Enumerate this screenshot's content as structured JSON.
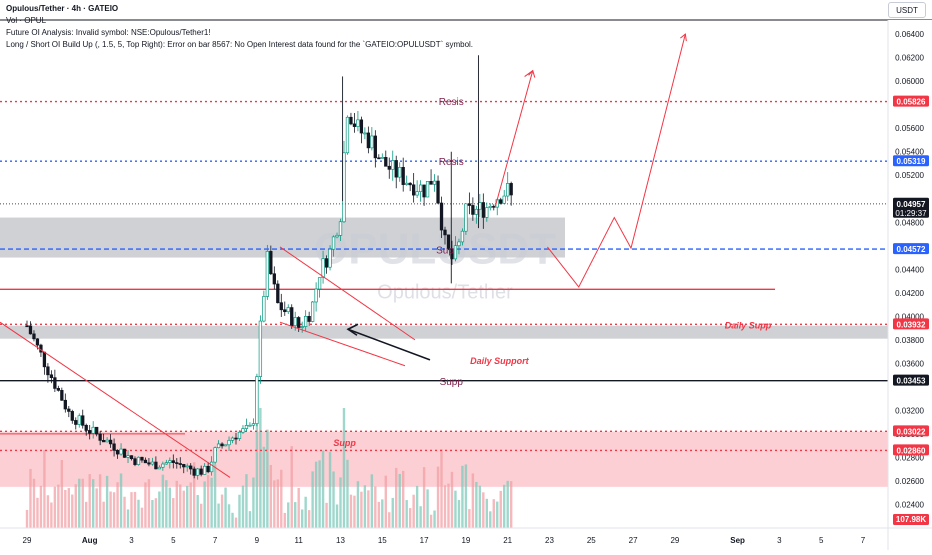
{
  "header": {
    "title": "Opulous/Tether · 4h · GATEIO",
    "line1": "Vol · OPUL",
    "line2": "Future OI Analysis: Invalid symbol: NSE:Opulous/Tether1!",
    "line3": "Long / Short OI Build Up  (, 1.5, 5, Top Right): Error on bar 8567: No Open Interest data found for the `GATEIO:OPULUSDT` symbol."
  },
  "currency_button": "USDT",
  "watermark": {
    "symbol": "OPULUSDT",
    "name": "Opulous/Tether"
  },
  "colors": {
    "up": "#089981",
    "down": "#131722",
    "resistance": "#f23645",
    "support_blue": "#2962ff",
    "zone_grey": "#9598a1",
    "zone_red": "#f7a8ae"
  },
  "chart_data": {
    "type": "candlestick",
    "y_range": [
      0.022,
      0.0652
    ],
    "y_ticks": [
      "0.06400",
      "0.06200",
      "0.06000",
      "0.05600",
      "0.05400",
      "0.05200",
      "0.04800",
      "0.04400",
      "0.04200",
      "0.04000",
      "0.03800",
      "0.03600",
      "0.03200",
      "0.03000",
      "0.02800",
      "0.02600",
      "0.02400"
    ],
    "x_ticks": [
      {
        "label": "29",
        "day": 0
      },
      {
        "label": "Aug",
        "day": 3
      },
      {
        "label": "3",
        "day": 5
      },
      {
        "label": "5",
        "day": 7
      },
      {
        "label": "7",
        "day": 9
      },
      {
        "label": "9",
        "day": 11
      },
      {
        "label": "11",
        "day": 13
      },
      {
        "label": "13",
        "day": 15
      },
      {
        "label": "15",
        "day": 17
      },
      {
        "label": "17",
        "day": 19
      },
      {
        "label": "19",
        "day": 21
      },
      {
        "label": "21",
        "day": 23
      },
      {
        "label": "23",
        "day": 25
      },
      {
        "label": "25",
        "day": 27
      },
      {
        "label": "27",
        "day": 29
      },
      {
        "label": "29",
        "day": 31
      },
      {
        "label": "Sep",
        "day": 34
      },
      {
        "label": "3",
        "day": 36
      },
      {
        "label": "5",
        "day": 38
      },
      {
        "label": "7",
        "day": 40
      }
    ],
    "key_closes": [
      {
        "day": 0.0,
        "close": 0.0392
      },
      {
        "day": 1.0,
        "close": 0.0355
      },
      {
        "day": 2.0,
        "close": 0.0318
      },
      {
        "day": 3.0,
        "close": 0.0303
      },
      {
        "day": 4.0,
        "close": 0.0292
      },
      {
        "day": 5.0,
        "close": 0.0279
      },
      {
        "day": 6.0,
        "close": 0.0274
      },
      {
        "day": 7.0,
        "close": 0.0276
      },
      {
        "day": 8.0,
        "close": 0.0269
      },
      {
        "day": 8.6,
        "close": 0.0268
      },
      {
        "day": 9.0,
        "close": 0.0285
      },
      {
        "day": 10.0,
        "close": 0.03
      },
      {
        "day": 10.8,
        "close": 0.0305
      },
      {
        "day": 11.2,
        "close": 0.0398
      },
      {
        "day": 11.5,
        "close": 0.0448
      },
      {
        "day": 12.0,
        "close": 0.041
      },
      {
        "day": 12.5,
        "close": 0.0402
      },
      {
        "day": 13.0,
        "close": 0.0391
      },
      {
        "day": 13.6,
        "close": 0.0405
      },
      {
        "day": 14.0,
        "close": 0.0438
      },
      {
        "day": 14.5,
        "close": 0.0455
      },
      {
        "day": 15.0,
        "close": 0.0488
      },
      {
        "day": 15.3,
        "close": 0.0579
      },
      {
        "day": 15.8,
        "close": 0.056
      },
      {
        "day": 16.5,
        "close": 0.0548
      },
      {
        "day": 17.0,
        "close": 0.0531
      },
      {
        "day": 17.5,
        "close": 0.0524
      },
      {
        "day": 18.0,
        "close": 0.0518
      },
      {
        "day": 18.5,
        "close": 0.0512
      },
      {
        "day": 19.0,
        "close": 0.0508
      },
      {
        "day": 19.5,
        "close": 0.052
      },
      {
        "day": 20.0,
        "close": 0.0462
      },
      {
        "day": 20.3,
        "close": 0.0448
      },
      {
        "day": 20.6,
        "close": 0.0455
      },
      {
        "day": 21.0,
        "close": 0.0488
      },
      {
        "day": 21.5,
        "close": 0.049
      },
      {
        "day": 22.0,
        "close": 0.0493
      },
      {
        "day": 22.5,
        "close": 0.0502
      },
      {
        "day": 23.0,
        "close": 0.0507
      },
      {
        "day": 23.3,
        "close": 0.0496
      }
    ],
    "price_labels": [
      {
        "value": 0.05826,
        "label": "0.05826",
        "style": "red"
      },
      {
        "value": 0.05319,
        "label": "0.05319",
        "style": "blue"
      },
      {
        "value": 0.04957,
        "label": "0.04957",
        "style": "black",
        "sub": "01:29:37"
      },
      {
        "value": 0.04572,
        "label": "0.04572",
        "style": "blue"
      },
      {
        "value": 0.03932,
        "label": "0.03932",
        "style": "red"
      },
      {
        "value": 0.03453,
        "label": "0.03453",
        "style": "black"
      },
      {
        "value": 0.03022,
        "label": "0.03022",
        "style": "red"
      },
      {
        "value": 0.0286,
        "label": "0.02860",
        "style": "red"
      }
    ],
    "volume_label": "107.98K",
    "annotations": [
      {
        "text": "Resis",
        "value": 0.0583,
        "day": 20.3,
        "color": "#7b1e4a"
      },
      {
        "text": "Resis",
        "value": 0.0532,
        "day": 20.3,
        "color": "#7b1e4a"
      },
      {
        "text": "Sup",
        "value": 0.0457,
        "day": 20.0,
        "color": "#7b1e4a"
      },
      {
        "text": "Supp",
        "value": 0.0345,
        "day": 20.3,
        "color": "#7b1e4a"
      },
      {
        "text": "Daily Supp",
        "value": 0.0393,
        "day": 34.5,
        "color": "#f23645"
      },
      {
        "text": "Daily Support",
        "value": 0.0363,
        "day": 22.6,
        "color": "#f23645"
      },
      {
        "text": "Supp",
        "value": 0.0293,
        "day": 15.2,
        "color": "#f23645"
      }
    ]
  }
}
